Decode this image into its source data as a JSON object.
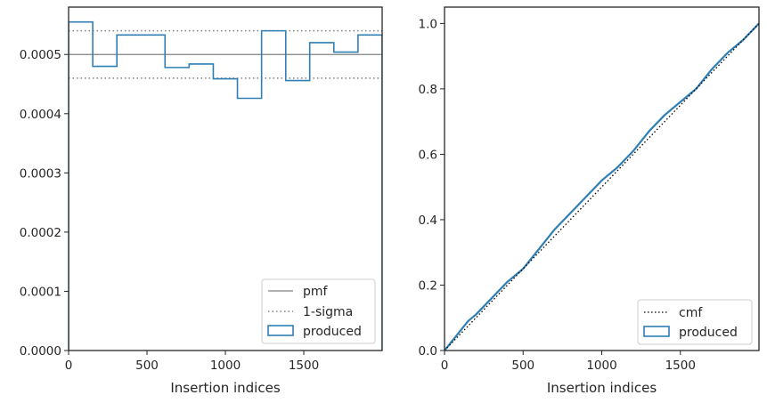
{
  "chart_data": [
    {
      "type": "histogram-step",
      "xlabel": "Insertion indices",
      "ylabel": "",
      "xlim": [
        0,
        2000
      ],
      "ylim": [
        0,
        0.00058
      ],
      "xticks": [
        0,
        500,
        1000,
        1500
      ],
      "xtick_labels": [
        "0",
        "500",
        "1000",
        "1500"
      ],
      "yticks": [
        0,
        0.0001,
        0.0002,
        0.0003,
        0.0004,
        0.0005
      ],
      "ytick_labels": [
        "0.0000",
        "0.0001",
        "0.0002",
        "0.0003",
        "0.0004",
        "0.0005"
      ],
      "grid": false,
      "legend_placement": "lower-right",
      "lines": [
        {
          "name": "pmf",
          "y": 0.0005,
          "style": "solid",
          "color": "#808080"
        },
        {
          "name": "1-sigma",
          "y": [
            0.00046,
            0.00054
          ],
          "style": "dotted",
          "color": "#808080"
        }
      ],
      "series": [
        {
          "name": "produced",
          "color": "#2f7fb5",
          "bin_edges": [
            0,
            154,
            308,
            462,
            615,
            769,
            923,
            1077,
            1231,
            1385,
            1538,
            1692,
            1846,
            2000
          ],
          "values": [
            0.000555,
            0.00048,
            0.000533,
            0.000533,
            0.000478,
            0.000484,
            0.000459,
            0.000426,
            0.00054,
            0.000456,
            0.00052,
            0.000504,
            0.000533
          ]
        }
      ],
      "legend": [
        "pmf",
        "1-sigma",
        "produced"
      ]
    },
    {
      "type": "line",
      "xlabel": "Insertion indices",
      "ylabel": "",
      "xlim": [
        0,
        2000
      ],
      "ylim": [
        0,
        1.05
      ],
      "xticks": [
        0,
        500,
        1000,
        1500
      ],
      "xtick_labels": [
        "0",
        "500",
        "1000",
        "1500"
      ],
      "yticks": [
        0,
        0.2,
        0.4,
        0.6,
        0.8,
        1.0
      ],
      "ytick_labels": [
        "0.0",
        "0.2",
        "0.4",
        "0.6",
        "0.8",
        "1.0"
      ],
      "grid": false,
      "legend_placement": "lower-right",
      "series": [
        {
          "name": "cmf",
          "style": "dotted",
          "color": "#000000",
          "x": [
            0,
            2000
          ],
          "y": [
            0,
            1.0
          ]
        },
        {
          "name": "produced",
          "color": "#2f7fb5",
          "x": [
            0,
            50,
            100,
            150,
            200,
            300,
            400,
            500,
            600,
            700,
            800,
            900,
            1000,
            1100,
            1200,
            1300,
            1400,
            1500,
            1600,
            1700,
            1800,
            1900,
            2000
          ],
          "y": [
            0,
            0.03,
            0.06,
            0.09,
            0.11,
            0.16,
            0.21,
            0.25,
            0.31,
            0.37,
            0.42,
            0.47,
            0.52,
            0.56,
            0.61,
            0.67,
            0.72,
            0.76,
            0.8,
            0.86,
            0.91,
            0.95,
            1.0
          ]
        }
      ],
      "legend": [
        "cmf",
        "produced"
      ]
    }
  ]
}
